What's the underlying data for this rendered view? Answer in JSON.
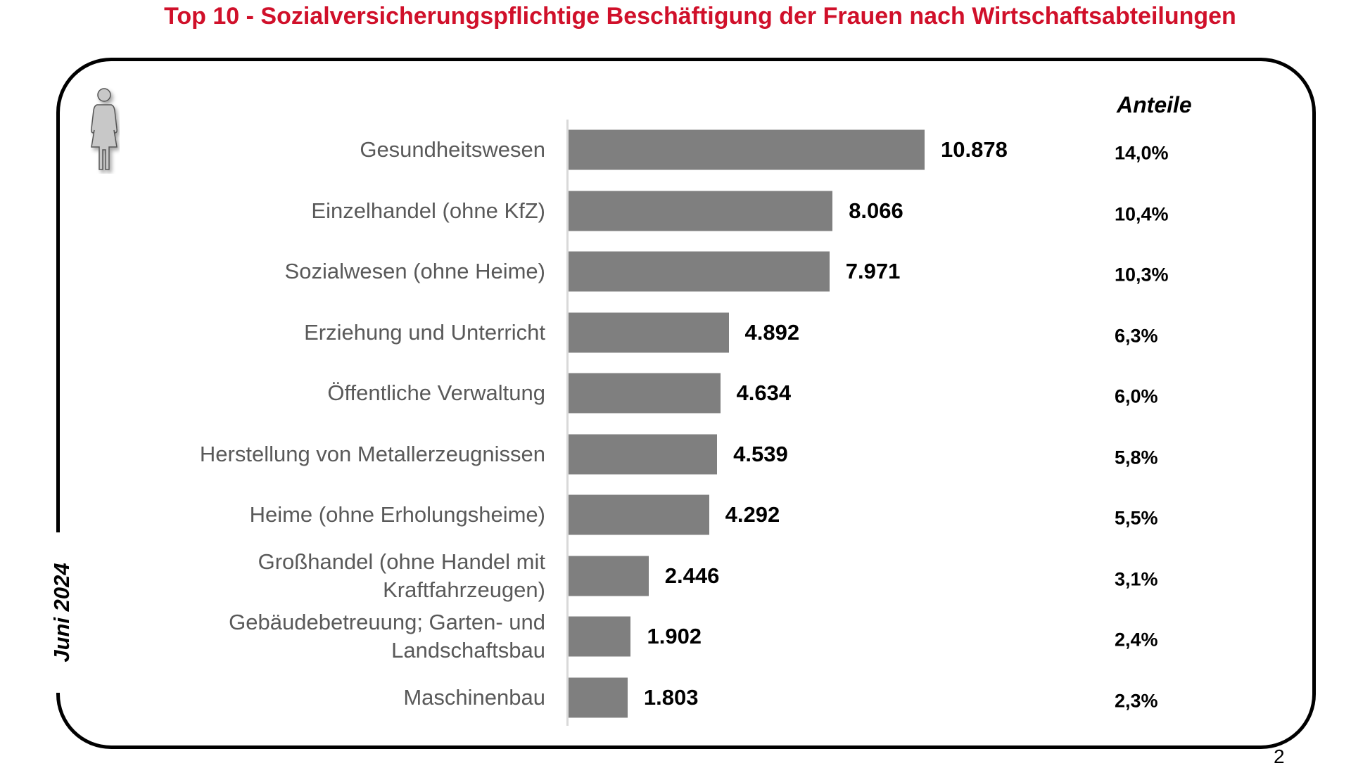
{
  "page_number": "2",
  "chart_data": {
    "type": "bar",
    "orientation": "horizontal",
    "title": "Top 10 - Sozialversicherungspflichtige Beschäftigung der Frauen nach Wirtschaftsabteilungen",
    "period": "Juni 2024",
    "share_header": "Anteile",
    "categories": [
      "Gesundheitswesen",
      "Einzelhandel (ohne KfZ)",
      "Sozialwesen (ohne Heime)",
      "Erziehung und Unterricht",
      "Öffentliche Verwaltung",
      "Herstellung von Metallerzeugnissen",
      "Heime (ohne Erholungsheime)",
      "Großhandel (ohne Handel mit Kraftfahrzeugen)",
      "Gebäudebetreuung; Garten- und Landschaftsbau",
      "Maschinenbau"
    ],
    "category_lines": [
      [
        "Gesundheitswesen"
      ],
      [
        "Einzelhandel (ohne KfZ)"
      ],
      [
        "Sozialwesen (ohne Heime)"
      ],
      [
        "Erziehung und Unterricht"
      ],
      [
        "Öffentliche Verwaltung"
      ],
      [
        "Herstellung von Metallerzeugnissen"
      ],
      [
        "Heime (ohne Erholungsheime)"
      ],
      [
        "Großhandel (ohne Handel mit",
        "Kraftfahrzeugen)"
      ],
      [
        "Gebäudebetreuung; Garten- und",
        "Landschaftsbau"
      ],
      [
        "Maschinenbau"
      ]
    ],
    "values": [
      10878,
      8066,
      7971,
      4892,
      4634,
      4539,
      4292,
      2446,
      1902,
      1803
    ],
    "value_labels": [
      "10.878",
      "8.066",
      "7.971",
      "4.892",
      "4.634",
      "4.539",
      "4.292",
      "2.446",
      "1.902",
      "1.803"
    ],
    "shares": [
      "14,0%",
      "10,4%",
      "10,3%",
      "6,3%",
      "6,0%",
      "5,8%",
      "5,5%",
      "3,1%",
      "2,4%",
      "2,3%"
    ],
    "xlim": [
      0,
      10878
    ],
    "bar_color": "#7f7f7f",
    "title_color": "#d0102a",
    "grid": false
  }
}
